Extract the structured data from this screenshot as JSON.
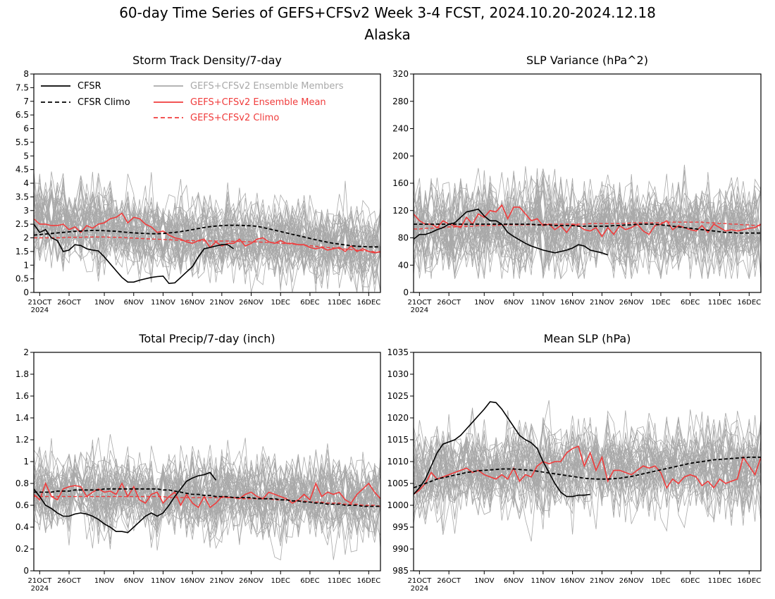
{
  "page": {
    "title_line1": "60-day Time Series of GEFS+CFSv2 Week 3-4 FCST, 2024.10.20-2024.12.18",
    "title_line2": "Alaska"
  },
  "legend": {
    "cfsr": "CFSR",
    "cfsr_climo": "CFSR Climo",
    "members": "GEFS+CFSv2 Ensemble Members",
    "ens_mean": "GEFS+CFSv2 Ensemble Mean",
    "gefs_climo": "GEFS+CFSv2 Climo",
    "colors": {
      "cfsr": "#000000",
      "members": "#a9a9a9",
      "ens_mean": "#f03c3c"
    }
  },
  "x_axis": {
    "tick_days": [
      1,
      6,
      12,
      17,
      22,
      27,
      32,
      37,
      42,
      47,
      52,
      57
    ],
    "tick_labels": [
      "21OCT",
      "26OCT",
      "1NOV",
      "6NOV",
      "11NOV",
      "16NOV",
      "21NOV",
      "26NOV",
      "1DEC",
      "6DEC",
      "11DEC",
      "16DEC"
    ],
    "year_label": "2024",
    "range_days": [
      0,
      59
    ]
  },
  "chart_data": [
    {
      "id": "storm",
      "type": "line",
      "title": "Storm Track Density/7-day",
      "ylim": [
        0,
        8
      ],
      "yticks": [
        0,
        0.5,
        1,
        1.5,
        2,
        2.5,
        3,
        3.5,
        4,
        4.5,
        5,
        5.5,
        6,
        6.5,
        7,
        7.5,
        8
      ],
      "ytick_labels": [
        "0",
        "0.5",
        "1",
        "1.5",
        "2",
        "2.5",
        "3",
        "3.5",
        "4",
        "4.5",
        "5",
        "5.5",
        "6",
        "6.5",
        "7",
        "7.5",
        "8"
      ],
      "legend": true,
      "members": {
        "count": 40,
        "center": [
          2.6,
          2.6,
          2.5,
          2.5,
          2.5,
          2.4,
          2.4,
          2.4,
          2.3,
          2.3,
          2.3,
          2.2,
          2.2,
          2.2,
          2.2,
          2.1,
          2.1,
          2.1,
          2.0,
          2.0,
          2.0,
          1.9,
          1.9,
          1.9,
          1.9,
          1.9,
          1.9,
          1.9,
          1.9,
          1.9,
          1.9,
          1.9,
          1.9,
          1.9,
          1.9,
          1.9,
          1.8,
          1.8,
          1.8,
          1.8,
          1.8,
          1.8,
          1.8,
          1.8,
          1.8,
          1.8,
          1.7,
          1.7,
          1.7,
          1.7,
          1.7,
          1.7,
          1.7,
          1.7,
          1.6,
          1.6,
          1.6,
          1.6,
          1.6,
          1.6
        ],
        "spread": 0.9,
        "min": 0,
        "max": 6
      },
      "cfsr": [
        2.5,
        2.2,
        2.3,
        2.0,
        1.9,
        1.5,
        1.55,
        1.75,
        1.72,
        1.6,
        1.55,
        1.52,
        1.3,
        1.05,
        0.8,
        0.55,
        0.38,
        0.38,
        0.45,
        0.5,
        0.55,
        0.58,
        0.6,
        0.33,
        0.35,
        0.55,
        0.75,
        0.95,
        1.3,
        1.6,
        1.65,
        1.7,
        1.75,
        1.75,
        1.6
      ],
      "cfsr_climo": [
        2.1,
        2.12,
        2.14,
        2.16,
        2.18,
        2.2,
        2.22,
        2.24,
        2.25,
        2.26,
        2.27,
        2.27,
        2.26,
        2.25,
        2.24,
        2.22,
        2.2,
        2.18,
        2.17,
        2.16,
        2.15,
        2.15,
        2.16,
        2.18,
        2.2,
        2.23,
        2.26,
        2.3,
        2.34,
        2.38,
        2.41,
        2.43,
        2.45,
        2.46,
        2.46,
        2.46,
        2.45,
        2.44,
        2.42,
        2.38,
        2.33,
        2.28,
        2.23,
        2.18,
        2.13,
        2.08,
        2.03,
        1.98,
        1.93,
        1.88,
        1.84,
        1.8,
        1.77,
        1.74,
        1.71,
        1.69,
        1.68,
        1.67,
        1.67,
        1.67
      ],
      "ens_mean": [
        2.7,
        2.5,
        2.5,
        2.45,
        2.45,
        2.5,
        2.3,
        2.4,
        2.2,
        2.45,
        2.35,
        2.5,
        2.55,
        2.7,
        2.75,
        2.9,
        2.55,
        2.75,
        2.7,
        2.5,
        2.4,
        2.2,
        2.25,
        2.1,
        2.0,
        1.95,
        1.85,
        1.8,
        1.9,
        1.95,
        1.65,
        1.85,
        1.7,
        1.8,
        1.8,
        1.95,
        1.7,
        1.8,
        1.95,
        2.0,
        1.85,
        1.8,
        1.9,
        1.8,
        1.8,
        1.75,
        1.75,
        1.65,
        1.6,
        1.65,
        1.55,
        1.6,
        1.65,
        1.5,
        1.7,
        1.5,
        1.6,
        1.5,
        1.45,
        1.5
      ],
      "gefs_climo": [
        2.0,
        2.0,
        2.0,
        2.0,
        2.0,
        2.01,
        2.02,
        2.02,
        2.02,
        2.03,
        2.03,
        2.03,
        2.03,
        2.02,
        2.02,
        2.01,
        2.0,
        1.99,
        1.98,
        1.97,
        1.96,
        1.95,
        1.94,
        1.93,
        1.92,
        1.91,
        1.9,
        1.9,
        1.89,
        1.89,
        1.89,
        1.88,
        1.88,
        1.88,
        1.87,
        1.87,
        1.86,
        1.85,
        1.85,
        1.84,
        1.83,
        1.82,
        1.8,
        1.79,
        1.77,
        1.75,
        1.73,
        1.71,
        1.69,
        1.67,
        1.65,
        1.63,
        1.61,
        1.59,
        1.57,
        1.55,
        1.53,
        1.51,
        1.49,
        1.47
      ]
    },
    {
      "id": "slpvar",
      "type": "line",
      "title": "SLP Variance (hPa^2)",
      "ylim": [
        0,
        320
      ],
      "yticks": [
        0,
        40,
        80,
        120,
        160,
        200,
        240,
        280,
        320
      ],
      "ytick_labels": [
        "0",
        "40",
        "80",
        "120",
        "160",
        "200",
        "240",
        "280",
        "320"
      ],
      "legend": false,
      "members": {
        "count": 40,
        "center": [
          100,
          100,
          100,
          100,
          100,
          100,
          100,
          100,
          100,
          102,
          104,
          106,
          108,
          110,
          108,
          106,
          104,
          102,
          100,
          100,
          100,
          100,
          100,
          100,
          100,
          100,
          100,
          100,
          100,
          100,
          100,
          100,
          100,
          100,
          100,
          100,
          100,
          100,
          100,
          100,
          100,
          100,
          100,
          100,
          100,
          100,
          100,
          100,
          100,
          100,
          100,
          100,
          100,
          100,
          100,
          100,
          100,
          100,
          100,
          100
        ],
        "spread": 40,
        "min": 20,
        "max": 320
      },
      "cfsr": [
        78,
        85,
        85,
        88,
        92,
        95,
        100,
        102,
        110,
        118,
        120,
        122,
        112,
        105,
        105,
        100,
        88,
        82,
        77,
        72,
        68,
        65,
        62,
        60,
        58,
        60,
        62,
        65,
        70,
        68,
        62,
        60,
        58,
        55
      ],
      "cfsr_climo": [
        100,
        100,
        100,
        100,
        100,
        100,
        100,
        100,
        100,
        100,
        100,
        100,
        100,
        100,
        100,
        100,
        100,
        100,
        100,
        100,
        100,
        99,
        99,
        99,
        98,
        98,
        98,
        98,
        97,
        97,
        97,
        97,
        97,
        97,
        98,
        98,
        99,
        99,
        100,
        100,
        100,
        100,
        99,
        98,
        97,
        96,
        95,
        94,
        93,
        92,
        91,
        90,
        89,
        88,
        88,
        87,
        87,
        87,
        87,
        87
      ],
      "ens_mean": [
        115,
        105,
        100,
        100,
        95,
        105,
        100,
        98,
        95,
        110,
        100,
        115,
        110,
        120,
        118,
        128,
        108,
        125,
        125,
        115,
        105,
        108,
        98,
        100,
        92,
        98,
        88,
        100,
        98,
        92,
        90,
        95,
        82,
        95,
        85,
        98,
        92,
        95,
        100,
        90,
        85,
        98,
        100,
        105,
        92,
        98,
        95,
        92,
        90,
        98,
        88,
        100,
        95,
        90,
        92,
        90,
        92,
        94,
        95,
        100
      ],
      "gefs_climo": [
        93,
        93,
        94,
        94,
        95,
        95,
        96,
        96,
        97,
        97,
        97,
        98,
        98,
        98,
        98,
        99,
        99,
        99,
        99,
        99,
        99,
        99,
        100,
        100,
        100,
        100,
        100,
        100,
        100,
        100,
        101,
        101,
        101,
        101,
        101,
        101,
        101,
        102,
        102,
        102,
        102,
        102,
        102,
        103,
        103,
        103,
        103,
        103,
        103,
        103,
        102,
        102,
        101,
        101,
        100,
        100,
        99,
        99,
        98,
        98
      ]
    },
    {
      "id": "precip",
      "type": "line",
      "title": "Total Precip/7-day (inch)",
      "ylim": [
        0,
        2
      ],
      "yticks": [
        0,
        0.2,
        0.4,
        0.6,
        0.8,
        1,
        1.2,
        1.4,
        1.6,
        1.8,
        2
      ],
      "ytick_labels": [
        "0",
        "0.2",
        "0.4",
        "0.6",
        "0.8",
        "1",
        "1.2",
        "1.4",
        "1.6",
        "1.8",
        "2"
      ],
      "legend": false,
      "members": {
        "count": 40,
        "center": [
          0.72,
          0.72,
          0.72,
          0.72,
          0.72,
          0.72,
          0.72,
          0.72,
          0.72,
          0.72,
          0.71,
          0.71,
          0.71,
          0.71,
          0.71,
          0.71,
          0.71,
          0.7,
          0.7,
          0.7,
          0.7,
          0.7,
          0.7,
          0.7,
          0.7,
          0.7,
          0.7,
          0.69,
          0.69,
          0.69,
          0.69,
          0.69,
          0.69,
          0.69,
          0.69,
          0.69,
          0.69,
          0.69,
          0.69,
          0.69,
          0.68,
          0.68,
          0.68,
          0.68,
          0.68,
          0.68,
          0.68,
          0.67,
          0.67,
          0.67,
          0.67,
          0.67,
          0.66,
          0.66,
          0.66,
          0.65,
          0.65,
          0.65,
          0.64,
          0.64
        ],
        "spread": 0.22,
        "min": 0.1,
        "max": 1.55
      },
      "cfsr": [
        0.75,
        0.68,
        0.6,
        0.57,
        0.53,
        0.5,
        0.5,
        0.52,
        0.53,
        0.52,
        0.5,
        0.47,
        0.43,
        0.4,
        0.36,
        0.36,
        0.35,
        0.4,
        0.45,
        0.5,
        0.53,
        0.5,
        0.53,
        0.6,
        0.68,
        0.75,
        0.82,
        0.85,
        0.87,
        0.88,
        0.9,
        0.83
      ],
      "cfsr_climo": [
        0.72,
        0.72,
        0.72,
        0.72,
        0.73,
        0.73,
        0.73,
        0.74,
        0.74,
        0.74,
        0.74,
        0.74,
        0.75,
        0.75,
        0.75,
        0.75,
        0.75,
        0.75,
        0.75,
        0.75,
        0.75,
        0.75,
        0.74,
        0.74,
        0.73,
        0.72,
        0.71,
        0.7,
        0.7,
        0.69,
        0.69,
        0.68,
        0.68,
        0.68,
        0.67,
        0.67,
        0.67,
        0.67,
        0.66,
        0.66,
        0.66,
        0.66,
        0.65,
        0.65,
        0.64,
        0.64,
        0.63,
        0.63,
        0.62,
        0.62,
        0.61,
        0.61,
        0.61,
        0.6,
        0.6,
        0.6,
        0.59,
        0.59,
        0.59,
        0.59
      ],
      "ens_mean": [
        0.7,
        0.65,
        0.8,
        0.68,
        0.65,
        0.75,
        0.77,
        0.78,
        0.77,
        0.68,
        0.72,
        0.75,
        0.72,
        0.73,
        0.7,
        0.8,
        0.68,
        0.77,
        0.65,
        0.62,
        0.7,
        0.72,
        0.62,
        0.68,
        0.72,
        0.6,
        0.7,
        0.62,
        0.58,
        0.68,
        0.58,
        0.62,
        0.68,
        0.67,
        0.67,
        0.66,
        0.7,
        0.72,
        0.68,
        0.66,
        0.72,
        0.7,
        0.68,
        0.66,
        0.62,
        0.65,
        0.7,
        0.65,
        0.8,
        0.68,
        0.72,
        0.7,
        0.72,
        0.65,
        0.62,
        0.7,
        0.75,
        0.8,
        0.72,
        0.66
      ],
      "gefs_climo": [
        0.68,
        0.68,
        0.68,
        0.68,
        0.68,
        0.68,
        0.68,
        0.68,
        0.68,
        0.68,
        0.68,
        0.68,
        0.68,
        0.68,
        0.68,
        0.68,
        0.68,
        0.68,
        0.68,
        0.68,
        0.68,
        0.68,
        0.68,
        0.67,
        0.67,
        0.67,
        0.67,
        0.67,
        0.67,
        0.67,
        0.67,
        0.67,
        0.67,
        0.67,
        0.67,
        0.66,
        0.66,
        0.66,
        0.66,
        0.66,
        0.66,
        0.65,
        0.65,
        0.65,
        0.64,
        0.64,
        0.64,
        0.63,
        0.63,
        0.63,
        0.62,
        0.62,
        0.62,
        0.61,
        0.61,
        0.61,
        0.6,
        0.6,
        0.6,
        0.59
      ]
    },
    {
      "id": "meanslp",
      "type": "line",
      "title": "Mean SLP (hPa)",
      "ylim": [
        985,
        1035
      ],
      "yticks": [
        985,
        990,
        995,
        1000,
        1005,
        1010,
        1015,
        1020,
        1025,
        1030,
        1035
      ],
      "ytick_labels": [
        "985",
        "990",
        "995",
        "1000",
        "1005",
        "1010",
        "1015",
        "1020",
        "1025",
        "1030",
        "1035"
      ],
      "legend": false,
      "members": {
        "count": 40,
        "center": [
          1006,
          1006,
          1006,
          1006.5,
          1007,
          1007,
          1007.5,
          1008,
          1008,
          1008,
          1008,
          1008,
          1008,
          1008,
          1008,
          1008,
          1008,
          1008,
          1008,
          1008,
          1008,
          1008,
          1008,
          1008,
          1008,
          1008,
          1008,
          1008,
          1008,
          1008,
          1008,
          1008,
          1008,
          1008,
          1008,
          1008,
          1008,
          1008,
          1008,
          1008,
          1008,
          1008,
          1008,
          1008,
          1008,
          1008,
          1008,
          1008,
          1008,
          1008,
          1008,
          1008,
          1008,
          1008,
          1008,
          1008,
          1008,
          1008,
          1008,
          1008
        ],
        "spread": 6,
        "min": 990,
        "max": 1035
      },
      "cfsr": [
        1002.5,
        1004,
        1006,
        1009,
        1012,
        1014,
        1014.5,
        1015,
        1016,
        1017.5,
        1019,
        1020.5,
        1022,
        1023.7,
        1023.5,
        1022,
        1020,
        1018,
        1016,
        1015,
        1014.3,
        1013,
        1010,
        1007.5,
        1005,
        1003,
        1002,
        1002,
        1002.3,
        1002.3,
        1002.5
      ],
      "cfsr_climo": [
        1004,
        1004.5,
        1005,
        1005.5,
        1006,
        1006.3,
        1006.6,
        1006.9,
        1007.2,
        1007.5,
        1007.7,
        1007.9,
        1008,
        1008.1,
        1008.2,
        1008.3,
        1008.3,
        1008.3,
        1008.2,
        1008.1,
        1008,
        1007.8,
        1007.6,
        1007.4,
        1007.2,
        1007,
        1006.8,
        1006.6,
        1006.4,
        1006.2,
        1006.1,
        1006,
        1006,
        1006,
        1006.1,
        1006.2,
        1006.4,
        1006.6,
        1006.9,
        1007.2,
        1007.5,
        1007.8,
        1008.1,
        1008.4,
        1008.7,
        1009,
        1009.3,
        1009.6,
        1009.8,
        1010,
        1010.2,
        1010.4,
        1010.5,
        1010.6,
        1010.7,
        1010.8,
        1010.9,
        1011,
        1011,
        1011
      ],
      "ens_mean": [
        1002.5,
        1003.5,
        1005,
        1007.5,
        1006,
        1006.5,
        1007,
        1007.5,
        1008,
        1008.5,
        1007.5,
        1008,
        1007,
        1006.5,
        1006,
        1007,
        1006,
        1008.5,
        1005.5,
        1007,
        1006.5,
        1009,
        1010,
        1009.5,
        1010,
        1010,
        1012,
        1013,
        1013.5,
        1009,
        1012,
        1008,
        1011,
        1005.5,
        1008,
        1008,
        1007.5,
        1007,
        1008,
        1009,
        1008.5,
        1009,
        1007.5,
        1004,
        1006,
        1005,
        1006.5,
        1007,
        1006.5,
        1004.5,
        1005.5,
        1004,
        1006,
        1005,
        1005.5,
        1006,
        1011,
        1009,
        1007,
        1011
      ]
    }
  ]
}
